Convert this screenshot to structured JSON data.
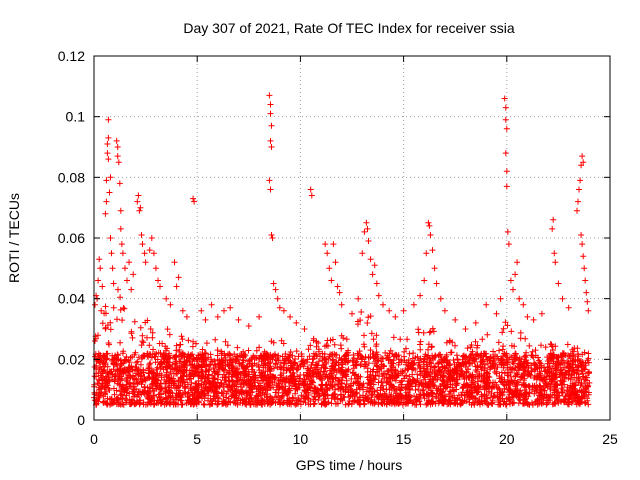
{
  "chart_data": {
    "type": "scatter",
    "title": "Day 307 of 2021, Rate Of TEC Index for receiver ssia",
    "xlabel": "GPS time / hours",
    "ylabel": "ROTI / TECUs",
    "xlim": [
      0,
      25
    ],
    "ylim": [
      0,
      0.12
    ],
    "xticks": [
      0,
      5,
      10,
      15,
      20,
      25
    ],
    "xtick_labels": [
      "0",
      "5",
      "10",
      "15",
      "20",
      "25"
    ],
    "yticks": [
      0,
      0.02,
      0.04,
      0.06,
      0.08,
      0.1,
      0.12
    ],
    "ytick_labels": [
      "0",
      "0.02",
      "0.04",
      "0.06",
      "0.08",
      "0.1",
      "0.12"
    ],
    "grid": true,
    "legend": "none",
    "marker": "+",
    "color": "#ff0000",
    "series": [
      {
        "points": [
          [
            0.05,
            0.038
          ],
          [
            0.1,
            0.041
          ],
          [
            0.15,
            0.04
          ],
          [
            0.2,
            0.046
          ],
          [
            0.25,
            0.053
          ],
          [
            0.3,
            0.05
          ],
          [
            0.35,
            0.036
          ],
          [
            0.4,
            0.044
          ],
          [
            0.55,
            0.068
          ],
          [
            0.6,
            0.072
          ],
          [
            0.6,
            0.079
          ],
          [
            0.65,
            0.088
          ],
          [
            0.65,
            0.091
          ],
          [
            0.7,
            0.093
          ],
          [
            0.7,
            0.099
          ],
          [
            0.7,
            0.086
          ],
          [
            0.75,
            0.075
          ],
          [
            0.8,
            0.08
          ],
          [
            0.8,
            0.06
          ],
          [
            0.85,
            0.055
          ],
          [
            0.9,
            0.05
          ],
          [
            0.95,
            0.045
          ],
          [
            1.1,
            0.092
          ],
          [
            1.15,
            0.09
          ],
          [
            1.15,
            0.087
          ],
          [
            1.2,
            0.085
          ],
          [
            1.25,
            0.078
          ],
          [
            1.3,
            0.069
          ],
          [
            1.3,
            0.063
          ],
          [
            1.35,
            0.058
          ],
          [
            1.4,
            0.055
          ],
          [
            1.5,
            0.05
          ],
          [
            1.6,
            0.046
          ],
          [
            1.7,
            0.052
          ],
          [
            1.8,
            0.043
          ],
          [
            1.9,
            0.048
          ],
          [
            2.1,
            0.072
          ],
          [
            2.15,
            0.074
          ],
          [
            2.2,
            0.069
          ],
          [
            2.25,
            0.07
          ],
          [
            2.3,
            0.061
          ],
          [
            2.35,
            0.058
          ],
          [
            2.45,
            0.055
          ],
          [
            2.5,
            0.052
          ],
          [
            2.7,
            0.056
          ],
          [
            2.8,
            0.06
          ],
          [
            2.9,
            0.055
          ],
          [
            3.0,
            0.05
          ],
          [
            3.1,
            0.046
          ],
          [
            3.2,
            0.044
          ],
          [
            3.5,
            0.04
          ],
          [
            3.7,
            0.038
          ],
          [
            3.9,
            0.052
          ],
          [
            4.0,
            0.044
          ],
          [
            4.1,
            0.047
          ],
          [
            4.3,
            0.036
          ],
          [
            4.5,
            0.034
          ],
          [
            4.8,
            0.073
          ],
          [
            4.85,
            0.072
          ],
          [
            5.2,
            0.036
          ],
          [
            5.4,
            0.033
          ],
          [
            5.7,
            0.038
          ],
          [
            6.0,
            0.034
          ],
          [
            6.3,
            0.036
          ],
          [
            6.6,
            0.037
          ],
          [
            7.0,
            0.033
          ],
          [
            7.5,
            0.031
          ],
          [
            8.0,
            0.034
          ],
          [
            8.5,
            0.107
          ],
          [
            8.55,
            0.104
          ],
          [
            8.55,
            0.101
          ],
          [
            8.6,
            0.097
          ],
          [
            8.55,
            0.092
          ],
          [
            8.6,
            0.09
          ],
          [
            8.5,
            0.079
          ],
          [
            8.55,
            0.076
          ],
          [
            8.6,
            0.061
          ],
          [
            8.65,
            0.06
          ],
          [
            8.7,
            0.045
          ],
          [
            8.8,
            0.043
          ],
          [
            8.9,
            0.04
          ],
          [
            9.0,
            0.037
          ],
          [
            9.2,
            0.036
          ],
          [
            9.5,
            0.034
          ],
          [
            9.8,
            0.032
          ],
          [
            10.2,
            0.03
          ],
          [
            10.5,
            0.076
          ],
          [
            10.55,
            0.074
          ],
          [
            11.2,
            0.058
          ],
          [
            11.3,
            0.055
          ],
          [
            11.4,
            0.05
          ],
          [
            11.5,
            0.046
          ],
          [
            11.6,
            0.058
          ],
          [
            11.7,
            0.052
          ],
          [
            11.8,
            0.044
          ],
          [
            11.9,
            0.042
          ],
          [
            12.0,
            0.038
          ],
          [
            12.5,
            0.035
          ],
          [
            12.8,
            0.04
          ],
          [
            13.0,
            0.055
          ],
          [
            13.1,
            0.062
          ],
          [
            13.2,
            0.065
          ],
          [
            13.25,
            0.063
          ],
          [
            13.3,
            0.059
          ],
          [
            13.4,
            0.053
          ],
          [
            13.5,
            0.048
          ],
          [
            13.6,
            0.051
          ],
          [
            13.7,
            0.045
          ],
          [
            13.8,
            0.041
          ],
          [
            14.0,
            0.038
          ],
          [
            14.3,
            0.036
          ],
          [
            14.6,
            0.034
          ],
          [
            15.0,
            0.036
          ],
          [
            15.5,
            0.038
          ],
          [
            15.8,
            0.041
          ],
          [
            16.0,
            0.046
          ],
          [
            16.1,
            0.055
          ],
          [
            16.2,
            0.065
          ],
          [
            16.25,
            0.064
          ],
          [
            16.3,
            0.061
          ],
          [
            16.4,
            0.056
          ],
          [
            16.5,
            0.05
          ],
          [
            16.6,
            0.045
          ],
          [
            16.8,
            0.04
          ],
          [
            17.0,
            0.036
          ],
          [
            17.5,
            0.033
          ],
          [
            18.0,
            0.03
          ],
          [
            18.5,
            0.032
          ],
          [
            19.0,
            0.038
          ],
          [
            19.5,
            0.035
          ],
          [
            19.7,
            0.04
          ],
          [
            19.9,
            0.106
          ],
          [
            19.95,
            0.103
          ],
          [
            19.95,
            0.099
          ],
          [
            20.0,
            0.096
          ],
          [
            19.95,
            0.088
          ],
          [
            20.0,
            0.082
          ],
          [
            20.0,
            0.077
          ],
          [
            20.05,
            0.062
          ],
          [
            20.1,
            0.058
          ],
          [
            20.2,
            0.046
          ],
          [
            20.3,
            0.043
          ],
          [
            20.4,
            0.048
          ],
          [
            20.5,
            0.052
          ],
          [
            20.6,
            0.04
          ],
          [
            20.8,
            0.038
          ],
          [
            21.0,
            0.034
          ],
          [
            21.3,
            0.033
          ],
          [
            21.7,
            0.035
          ],
          [
            22.2,
            0.063
          ],
          [
            22.25,
            0.066
          ],
          [
            22.3,
            0.055
          ],
          [
            22.35,
            0.052
          ],
          [
            22.5,
            0.045
          ],
          [
            22.7,
            0.04
          ],
          [
            23.0,
            0.037
          ],
          [
            23.4,
            0.069
          ],
          [
            23.45,
            0.072
          ],
          [
            23.5,
            0.076
          ],
          [
            23.55,
            0.079
          ],
          [
            23.6,
            0.084
          ],
          [
            23.65,
            0.087
          ],
          [
            23.7,
            0.085
          ],
          [
            23.6,
            0.061
          ],
          [
            23.65,
            0.058
          ],
          [
            23.7,
            0.054
          ],
          [
            23.75,
            0.05
          ],
          [
            23.8,
            0.046
          ],
          [
            23.85,
            0.042
          ],
          [
            23.9,
            0.039
          ],
          [
            23.95,
            0.036
          ]
        ],
        "background_band": {
          "x_range": [
            0,
            24
          ],
          "base_ymin": 0.005,
          "base_ymax": 0.022,
          "density_per_hour": 160,
          "envelope": [
            [
              0,
              0.028
            ],
            [
              1,
              0.045
            ],
            [
              2,
              0.035
            ],
            [
              3,
              0.032
            ],
            [
              4,
              0.03
            ],
            [
              5,
              0.026
            ],
            [
              6,
              0.027
            ],
            [
              7,
              0.026
            ],
            [
              8,
              0.025
            ],
            [
              9,
              0.03
            ],
            [
              10,
              0.025
            ],
            [
              11,
              0.028
            ],
            [
              12,
              0.03
            ],
            [
              13,
              0.038
            ],
            [
              14,
              0.03
            ],
            [
              15,
              0.027
            ],
            [
              16,
              0.033
            ],
            [
              17,
              0.027
            ],
            [
              18,
              0.025
            ],
            [
              19,
              0.028
            ],
            [
              20,
              0.033
            ],
            [
              21,
              0.028
            ],
            [
              22,
              0.026
            ],
            [
              23,
              0.025
            ],
            [
              24,
              0.022
            ]
          ]
        }
      }
    ]
  }
}
